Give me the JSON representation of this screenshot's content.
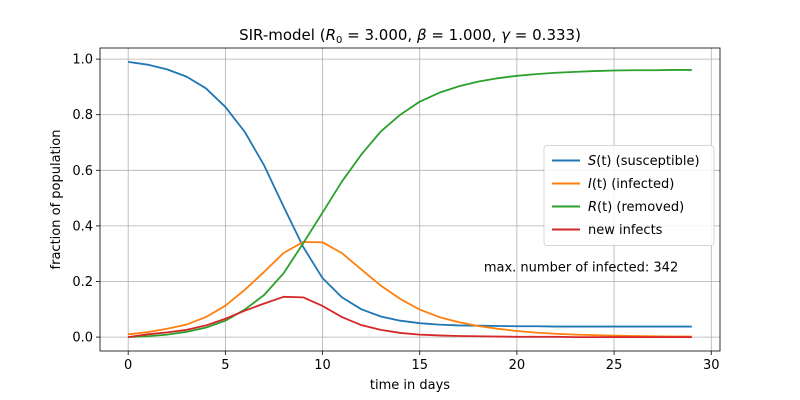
{
  "chart_data": {
    "type": "line",
    "title": "SIR-model (R₀ = 3.000, β = 1.000, γ = 0.333)",
    "title_parts": {
      "prefix": "SIR-model (",
      "r0_symbol": "R",
      "r0_sub": "0",
      "r0_value": " = 3.000, ",
      "beta_symbol": "β",
      "beta_value": " = 1.000, ",
      "gamma_symbol": "γ",
      "gamma_value": " = 0.333)"
    },
    "xlabel": "time in days",
    "ylabel": "fraction of population",
    "xlim": [
      -1.45,
      30.45
    ],
    "ylim": [
      -0.05,
      1.04
    ],
    "xticks": [
      0,
      5,
      10,
      15,
      20,
      25,
      30
    ],
    "xtick_labels": [
      "0",
      "5",
      "10",
      "15",
      "20",
      "25",
      "30"
    ],
    "yticks": [
      0.0,
      0.2,
      0.4,
      0.6,
      0.8,
      1.0
    ],
    "ytick_labels": [
      "0.0",
      "0.2",
      "0.4",
      "0.6",
      "0.8",
      "1.0"
    ],
    "grid": true,
    "legend_position": "center-right",
    "x": [
      0,
      1,
      2,
      3,
      4,
      5,
      6,
      7,
      8,
      9,
      10,
      11,
      12,
      13,
      14,
      15,
      16,
      17,
      18,
      19,
      20,
      21,
      22,
      23,
      24,
      25,
      26,
      27,
      28,
      29
    ],
    "series": [
      {
        "name": "S(t) (susceptible)",
        "legend_italic": "S",
        "legend_rest": "(t) (susceptible)",
        "color": "#1f77b4",
        "values": [
          0.99,
          0.98,
          0.963,
          0.937,
          0.895,
          0.828,
          0.738,
          0.617,
          0.469,
          0.325,
          0.212,
          0.143,
          0.1,
          0.074,
          0.059,
          0.05,
          0.045,
          0.042,
          0.041,
          0.04,
          0.039,
          0.039,
          0.038,
          0.038,
          0.038,
          0.038,
          0.038,
          0.038,
          0.038,
          0.038
        ]
      },
      {
        "name": "I(t) (infected)",
        "legend_italic": "I",
        "legend_rest": "(t) (infected)",
        "color": "#ff7f0e",
        "values": [
          0.01,
          0.018,
          0.03,
          0.045,
          0.072,
          0.113,
          0.17,
          0.235,
          0.303,
          0.342,
          0.341,
          0.302,
          0.243,
          0.185,
          0.137,
          0.099,
          0.072,
          0.054,
          0.04,
          0.03,
          0.022,
          0.016,
          0.012,
          0.009,
          0.007,
          0.005,
          0.004,
          0.003,
          0.002,
          0.002
        ]
      },
      {
        "name": "R(t) (removed)",
        "legend_italic": "R",
        "legend_rest": "(t) (removed)",
        "color": "#2ca02c",
        "values": [
          0.0,
          0.003,
          0.009,
          0.019,
          0.034,
          0.059,
          0.099,
          0.152,
          0.23,
          0.337,
          0.448,
          0.56,
          0.657,
          0.74,
          0.8,
          0.847,
          0.879,
          0.902,
          0.919,
          0.931,
          0.94,
          0.946,
          0.951,
          0.954,
          0.957,
          0.959,
          0.96,
          0.96,
          0.961,
          0.961
        ]
      },
      {
        "name": "new infects",
        "legend_italic": "",
        "legend_rest": "new infects",
        "color": "#d62728",
        "values": [
          0.0,
          0.01,
          0.017,
          0.026,
          0.042,
          0.066,
          0.095,
          0.121,
          0.145,
          0.143,
          0.112,
          0.072,
          0.043,
          0.026,
          0.015,
          0.009,
          0.006,
          0.004,
          0.003,
          0.002,
          0.001,
          0.001,
          0.001,
          0.0,
          0.0,
          0.0,
          0.0,
          0.0,
          0.0,
          0.0
        ]
      }
    ],
    "annotation": {
      "text": "max. number of infected: 342",
      "x": 18.3,
      "y": 0.236
    }
  }
}
